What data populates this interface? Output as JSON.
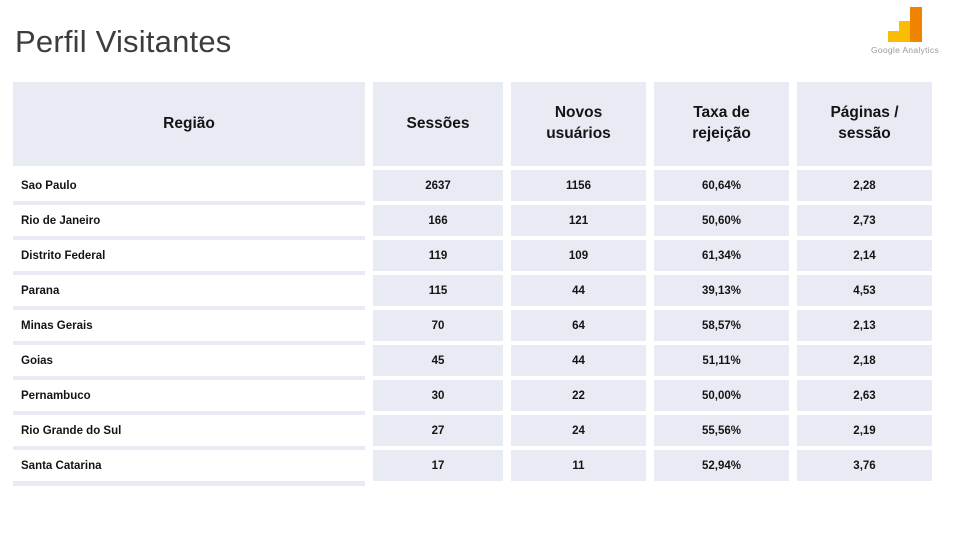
{
  "slide": {
    "title": "Perfil Visitantes"
  },
  "logo": {
    "label": "Google Analytics"
  },
  "colors": {
    "cell_fill": "#E9EBF4",
    "logo_yellow": "#FBBC05",
    "logo_orange": "#F08300"
  },
  "table": {
    "columns": [
      "Região",
      "Sessões",
      "Novos usuários",
      "Taxa de rejeição",
      "Páginas / sessão"
    ],
    "rows": [
      {
        "region": "Sao Paulo",
        "sessions": "2637",
        "new_users": "1156",
        "bounce_rate": "60,64%",
        "pages_per_session": "2,28"
      },
      {
        "region": "Rio de Janeiro",
        "sessions": "166",
        "new_users": "121",
        "bounce_rate": "50,60%",
        "pages_per_session": "2,73"
      },
      {
        "region": "Distrito Federal",
        "sessions": "119",
        "new_users": "109",
        "bounce_rate": "61,34%",
        "pages_per_session": "2,14"
      },
      {
        "region": "Parana",
        "sessions": "115",
        "new_users": "44",
        "bounce_rate": "39,13%",
        "pages_per_session": "4,53"
      },
      {
        "region": "Minas Gerais",
        "sessions": "70",
        "new_users": "64",
        "bounce_rate": "58,57%",
        "pages_per_session": "2,13"
      },
      {
        "region": "Goias",
        "sessions": "45",
        "new_users": "44",
        "bounce_rate": "51,11%",
        "pages_per_session": "2,18"
      },
      {
        "region": "Pernambuco",
        "sessions": "30",
        "new_users": "22",
        "bounce_rate": "50,00%",
        "pages_per_session": "2,63"
      },
      {
        "region": "Rio Grande do Sul",
        "sessions": "27",
        "new_users": "24",
        "bounce_rate": "55,56%",
        "pages_per_session": "2,19"
      },
      {
        "region": "Santa Catarina",
        "sessions": "17",
        "new_users": "11",
        "bounce_rate": "52,94%",
        "pages_per_session": "3,76"
      }
    ]
  }
}
